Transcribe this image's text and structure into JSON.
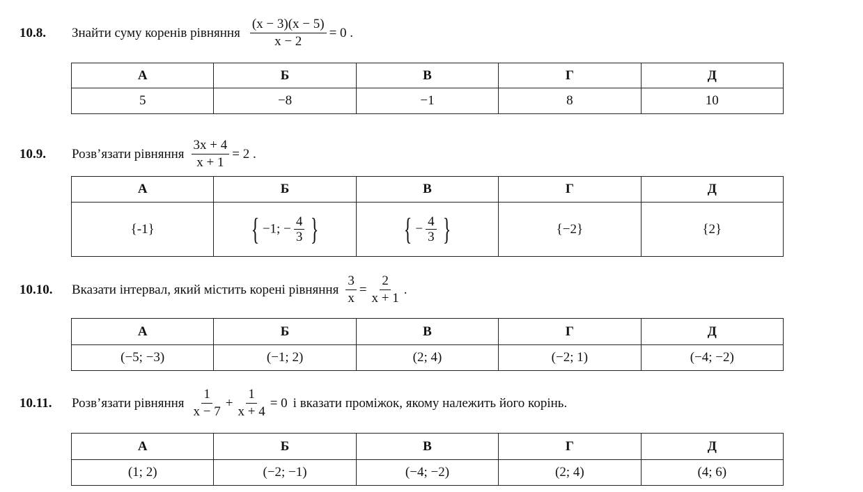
{
  "problems": [
    {
      "number": "10.8.",
      "text": "Знайти суму коренів рівняння",
      "eq": {
        "num": "(x − 3)(x − 5)",
        "den": "x − 2",
        "rhs": "= 0 ."
      },
      "headers": [
        "А",
        "Б",
        "В",
        "Г",
        "Д"
      ],
      "options": [
        "5",
        "−8",
        "−1",
        "8",
        "10"
      ]
    },
    {
      "number": "10.9.",
      "text": "Розв’язати рівняння",
      "eq": {
        "num": "3x + 4",
        "den": "x + 1",
        "rhs": "= 2 ."
      },
      "headers": [
        "А",
        "Б",
        "В",
        "Г",
        "Д"
      ],
      "options": {
        "a": "{-1}",
        "b": {
          "prefix": "−1; −",
          "num": "4",
          "den": "3"
        },
        "c": {
          "prefix": "−",
          "num": "4",
          "den": "3"
        },
        "d": "{−2}",
        "e": "{2}"
      }
    },
    {
      "number": "10.10.",
      "text": "Вказати інтервал, який містить корені рівняння",
      "eq": {
        "num1": "3",
        "den1": "x",
        "eq": "=",
        "num2": "2",
        "den2": "x + 1",
        "end": "."
      },
      "headers": [
        "А",
        "Б",
        "В",
        "Г",
        "Д"
      ],
      "options": [
        "(−5; −3)",
        "(−1; 2)",
        "(2; 4)",
        "(−2; 1)",
        "(−4; −2)"
      ]
    },
    {
      "number": "10.11.",
      "text": "Розв’язати рівняння",
      "eq": {
        "num1": "1",
        "den1": "x − 7",
        "plus": "+",
        "num2": "1",
        "den2": "x + 4",
        "rhs": "= 0"
      },
      "text_after": "і вказати проміжок, якому належить його корінь.",
      "headers": [
        "А",
        "Б",
        "В",
        "Г",
        "Д"
      ],
      "options": [
        "(1; 2)",
        "(−2; −1)",
        "(−4; −2)",
        "(2; 4)",
        "(4; 6)"
      ]
    }
  ]
}
